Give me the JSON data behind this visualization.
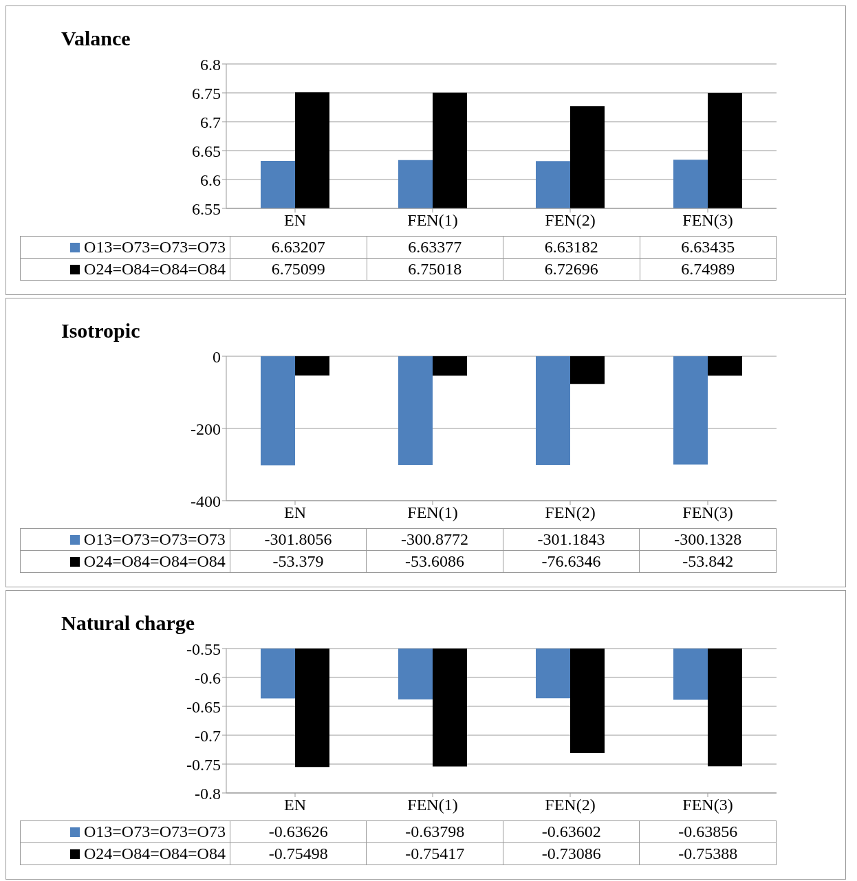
{
  "chart_data": [
    {
      "type": "bar",
      "title": "Valance",
      "categories": [
        "EN",
        "FEN(1)",
        "FEN(2)",
        "FEN(3)"
      ],
      "series": [
        {
          "name": "O13=O73=O73=O73",
          "color": "#4f81bd",
          "values": [
            6.63207,
            6.63377,
            6.63182,
            6.63435
          ]
        },
        {
          "name": "O24=O84=O84=O84",
          "color": "#000000",
          "values": [
            6.75099,
            6.75018,
            6.72696,
            6.74989
          ]
        }
      ],
      "ylim": [
        6.55,
        6.8
      ],
      "yticks": [
        6.55,
        6.6,
        6.65,
        6.7,
        6.75,
        6.8
      ],
      "grid": "y",
      "legend": "bottom",
      "data_labels": true
    },
    {
      "type": "bar",
      "title": "Isotropic",
      "categories": [
        "EN",
        "FEN(1)",
        "FEN(2)",
        "FEN(3)"
      ],
      "series": [
        {
          "name": "O13=O73=O73=O73",
          "color": "#4f81bd",
          "values": [
            -301.8056,
            -300.8772,
            -301.1843,
            -300.1328
          ]
        },
        {
          "name": "O24=O84=O84=O84",
          "color": "#000000",
          "values": [
            -53.379,
            -53.6086,
            -76.6346,
            -53.842
          ]
        }
      ],
      "ylim": [
        -400,
        0
      ],
      "yticks": [
        -400,
        -200,
        0
      ],
      "grid": "y",
      "legend": "bottom",
      "data_labels": true
    },
    {
      "type": "bar",
      "title": "Natural charge",
      "categories": [
        "EN",
        "FEN(1)",
        "FEN(2)",
        "FEN(3)"
      ],
      "series": [
        {
          "name": "O13=O73=O73=O73",
          "color": "#4f81bd",
          "values": [
            -0.63626,
            -0.63798,
            -0.63602,
            -0.63856
          ]
        },
        {
          "name": "O24=O84=O84=O84",
          "color": "#000000",
          "values": [
            -0.75498,
            -0.75417,
            -0.73086,
            -0.75388
          ]
        }
      ],
      "ylim": [
        -0.8,
        -0.55
      ],
      "yticks": [
        -0.8,
        -0.75,
        -0.7,
        -0.65,
        -0.6,
        -0.55
      ],
      "grid": "y",
      "legend": "bottom",
      "data_labels": true
    }
  ]
}
